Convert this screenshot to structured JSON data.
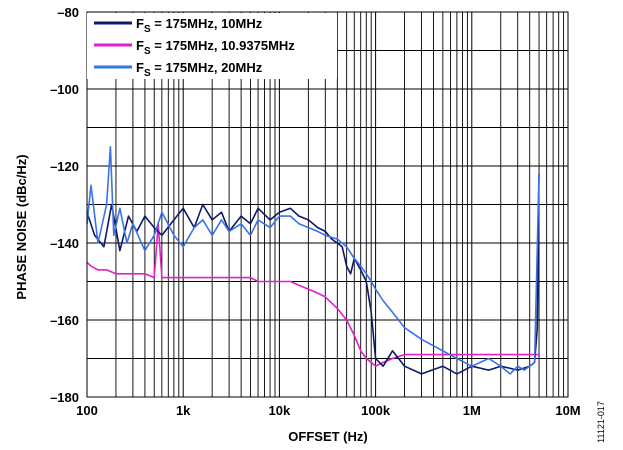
{
  "chart_data": {
    "type": "line",
    "xlabel": "OFFSET (Hz)",
    "ylabel": "PHASE NOISE (dBc/Hz)",
    "xscale": "log",
    "xlim": [
      100,
      10000000
    ],
    "ylim": [
      -180,
      -80
    ],
    "x_ticks": [
      100,
      1000,
      10000,
      100000,
      1000000,
      10000000
    ],
    "x_tick_labels": [
      "100",
      "1k",
      "10k",
      "100k",
      "1M",
      "10M"
    ],
    "y_ticks": [
      -80,
      -100,
      -120,
      -140,
      -160,
      -180
    ],
    "y_tick_labels": [
      "–80",
      "–100",
      "–120",
      "–140",
      "–160",
      "–180"
    ],
    "grid": true,
    "legend_position": "top-left",
    "figure_id": "11121-017",
    "series": [
      {
        "name": "F",
        "name_sub": "S",
        "name_rest": " = 175MHz, 10MHz",
        "color": "#0d1a6b",
        "x": [
          100,
          120,
          150,
          180,
          220,
          270,
          330,
          400,
          500,
          600,
          800,
          1000,
          1300,
          1600,
          2000,
          2500,
          3000,
          4000,
          5000,
          6000,
          8000,
          10000,
          13000,
          16000,
          20000,
          25000,
          30000,
          35000,
          40000,
          45000,
          50000,
          55000,
          60000,
          70000,
          80000,
          90000,
          100000,
          120000,
          150000,
          200000,
          300000,
          500000,
          700000,
          1000000,
          1500000,
          2000000,
          3000000,
          4000000,
          4500000,
          4800000,
          5000000
        ],
        "y": [
          -132,
          -138,
          -141,
          -130,
          -142,
          -133,
          -137,
          -133,
          -136,
          -138,
          -134,
          -131,
          -136,
          -130,
          -134,
          -132,
          -137,
          -133,
          -135,
          -131,
          -134,
          -132,
          -131,
          -133,
          -134,
          -136,
          -137,
          -139,
          -140,
          -141,
          -146,
          -148,
          -144,
          -147,
          -150,
          -158,
          -170,
          -172,
          -168,
          -172,
          -174,
          -172,
          -174,
          -172,
          -173,
          -172,
          -173,
          -172,
          -171,
          -162,
          -122
        ]
      },
      {
        "name": "F",
        "name_sub": "S",
        "name_rest": " = 175MHz, 10.9375MHz",
        "color": "#e61ec8",
        "x": [
          100,
          110,
          130,
          160,
          200,
          250,
          300,
          400,
          500,
          550,
          600,
          700,
          800,
          1000,
          1300,
          1600,
          2000,
          2500,
          3000,
          4000,
          5000,
          6000,
          8000,
          10000,
          13000,
          16000,
          20000,
          25000,
          30000,
          40000,
          50000,
          60000,
          70000,
          80000,
          90000,
          100000,
          120000,
          150000,
          200000,
          300000,
          500000,
          1000000,
          2000000,
          3000000,
          4000000,
          5000000
        ],
        "y": [
          -145,
          -146,
          -147,
          -147,
          -148,
          -148,
          -148,
          -148,
          -149,
          -135,
          -149,
          -149,
          -149,
          -149,
          -149,
          -149,
          -149,
          -149,
          -149,
          -149,
          -149,
          -150,
          -150,
          -150,
          -150,
          -151,
          -152,
          -153,
          -154,
          -157,
          -160,
          -164,
          -168,
          -170,
          -171,
          -172,
          -171,
          -170,
          -169,
          -169,
          -169,
          -169,
          -169,
          -169,
          -169,
          -169
        ]
      },
      {
        "name": "F",
        "name_sub": "S",
        "name_rest": " = 175MHz, 20MHz",
        "color": "#3a73e6",
        "x": [
          100,
          110,
          130,
          160,
          175,
          190,
          220,
          260,
          300,
          400,
          500,
          600,
          800,
          1000,
          1300,
          1600,
          2000,
          2500,
          3000,
          4000,
          5000,
          6000,
          8000,
          10000,
          13000,
          16000,
          20000,
          25000,
          30000,
          40000,
          50000,
          60000,
          70000,
          80000,
          90000,
          100000,
          120000,
          150000,
          200000,
          300000,
          500000,
          700000,
          1000000,
          1500000,
          2000000,
          2500000,
          3000000,
          3500000,
          4000000,
          4500000,
          5000000
        ],
        "y": [
          -135,
          -125,
          -140,
          -130,
          -115,
          -138,
          -131,
          -140,
          -135,
          -142,
          -138,
          -132,
          -138,
          -141,
          -136,
          -134,
          -138,
          -134,
          -137,
          -135,
          -138,
          -134,
          -136,
          -133,
          -133,
          -135,
          -136,
          -137,
          -138,
          -139,
          -141,
          -144,
          -146,
          -148,
          -150,
          -152,
          -155,
          -158,
          -162,
          -165,
          -168,
          -170,
          -172,
          -170,
          -172,
          -174,
          -172,
          -173,
          -172,
          -171,
          -122
        ]
      }
    ]
  }
}
